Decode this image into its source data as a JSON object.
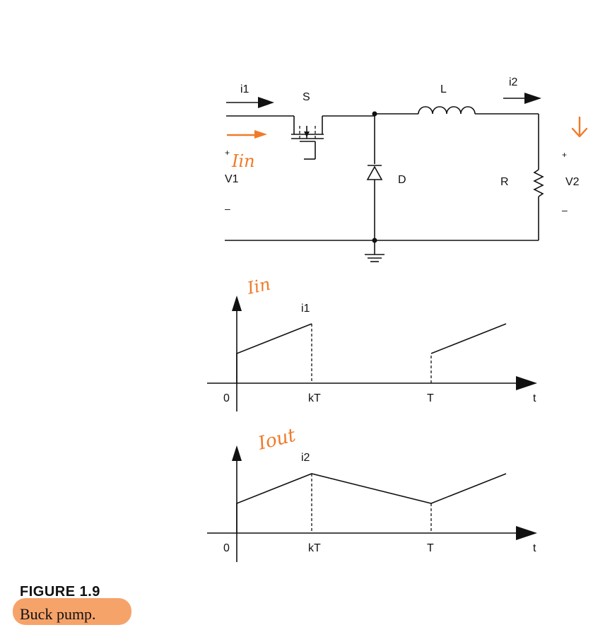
{
  "circuit": {
    "labels": {
      "i1": "i1",
      "s": "S",
      "l": "L",
      "i2": "i2",
      "d": "D",
      "r": "R",
      "v1": "V1",
      "v2": "V2",
      "plus_left": "+",
      "minus_left": "–",
      "plus_right": "+",
      "minus_right": "–"
    },
    "annotation_in": "Iin"
  },
  "waveform_in": {
    "annotation": "Iin",
    "signal_label": "i1",
    "origin": "0",
    "tick_kt": "kT",
    "tick_t": "T",
    "axis_t": "t"
  },
  "waveform_out": {
    "annotation": "Iout",
    "signal_label": "i2",
    "origin": "0",
    "tick_kt": "kT",
    "tick_t": "T",
    "axis_t": "t"
  },
  "caption": {
    "title": "FIGURE 1.9",
    "text": "Buck pump."
  },
  "colors": {
    "annotation": "#f07a28",
    "highlight": "#f6a36a",
    "line": "#111111"
  }
}
